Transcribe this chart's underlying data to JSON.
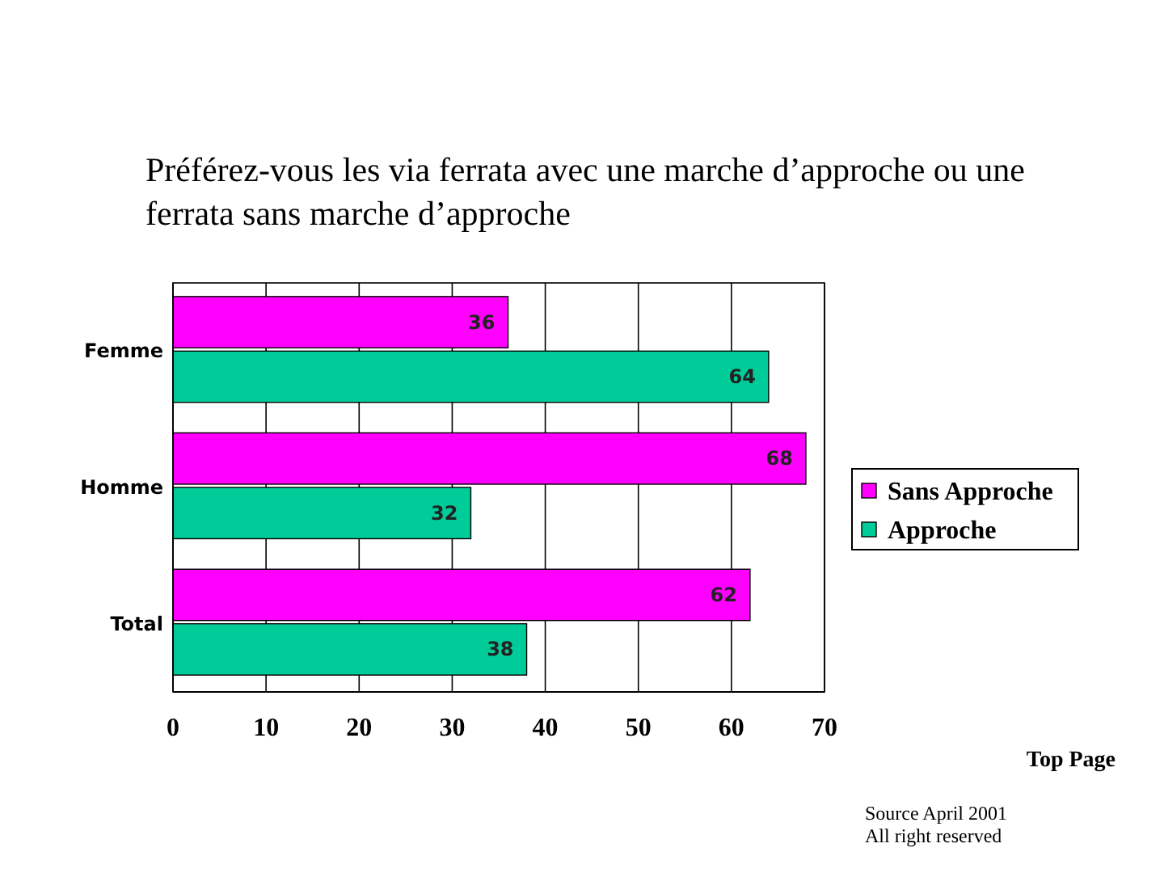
{
  "chart_data": {
    "type": "bar",
    "orientation": "horizontal",
    "title": "Préférez-vous les via ferrata avec une marche d’approche ou une ferrata sans marche d’approche",
    "categories": [
      "Femme",
      "Homme",
      "Total"
    ],
    "series": [
      {
        "name": "Sans Approche",
        "color": "#ff00ff",
        "values": [
          36,
          68,
          62
        ]
      },
      {
        "name": "Approche",
        "color": "#00cc99",
        "values": [
          64,
          32,
          38
        ]
      }
    ],
    "xlim": [
      0,
      70
    ],
    "xticks": [
      0,
      10,
      20,
      30,
      40,
      50,
      60,
      70
    ],
    "grid": "x",
    "legend": "right",
    "data_labels": true,
    "annotations": [
      "Top Page",
      "Source April 2001",
      "All right reserved"
    ]
  }
}
